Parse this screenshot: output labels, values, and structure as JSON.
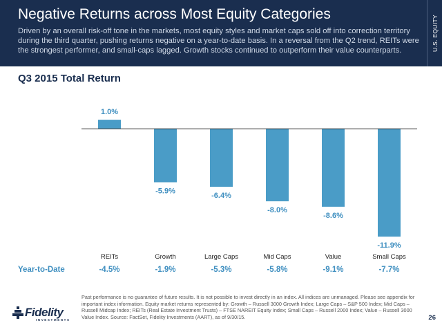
{
  "header": {
    "title": "Negative Returns across Most Equity Categories",
    "subtitle": "Driven by an overall risk-off tone in the markets, most equity styles and market caps sold off into correction territory during the third quarter, pushing returns negative on a year-to-date basis. In a reversal from the Q2 trend, REITs were the strongest performer, and small-caps lagged. Growth stocks continued to outperform their value counterparts.",
    "side_tab": "U.S. EQUITY"
  },
  "colors": {
    "header_bg": "#1a2e4f",
    "bar": "#4a9cc7",
    "ytd": "#3f8fc0"
  },
  "chart_data": {
    "type": "bar",
    "title": "Q3 2015 Total Return",
    "categories": [
      "REITs",
      "Growth",
      "Large Caps",
      "Mid Caps",
      "Value",
      "Small Caps"
    ],
    "values": [
      1.0,
      -5.9,
      -6.4,
      -8.0,
      -8.6,
      -11.9
    ],
    "data_labels": [
      "1.0%",
      "-5.9%",
      "-6.4%",
      "-8.0%",
      "-8.6%",
      "-11.9%"
    ],
    "ylim": [
      -12.5,
      2.0
    ],
    "grid": false,
    "xlabel": "",
    "ylabel": ""
  },
  "ytd": {
    "label": "Year-to-Date",
    "values": [
      "-4.5%",
      "-1.9%",
      "-5.3%",
      "-5.8%",
      "-9.1%",
      "-7.7%"
    ]
  },
  "footnote": "Past performance is no guarantee of future results. It is not possible to invest directly in an index. All indices are unmanaged. Please see appendix for important index information. Equity market returns represented by: Growth – Russell 3000 Growth Index; Large Caps – S&P 500 Index; Mid Caps – Russell Midcap Index; REITs (Real Estate Investment Trusts) – FTSE NAREIT Equity Index; Small Caps – Russell 2000 Index; Value – Russell 3000 Value Index. Source: FactSet, Fidelity Investments (AART), as of 9/30/15.",
  "page_number": "26",
  "logo": {
    "word": "Fidelity",
    "sub": "INVESTMENTS",
    "icon": "fidelity-pyramid-icon"
  }
}
